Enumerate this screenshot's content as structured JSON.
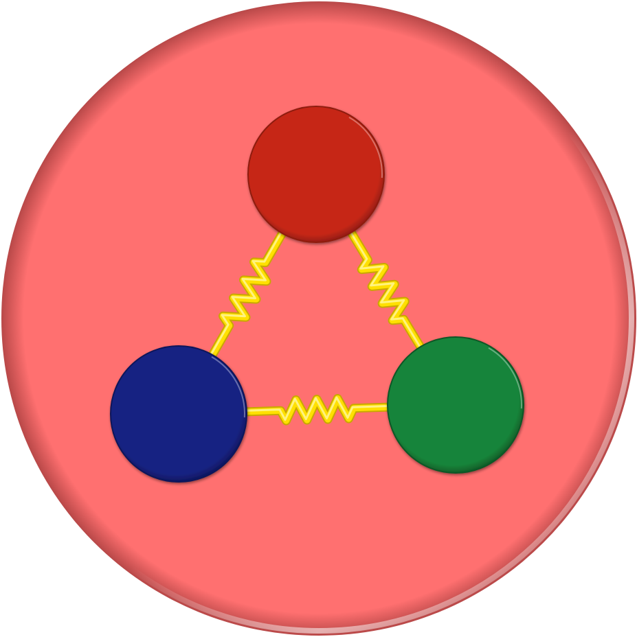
{
  "diagram": {
    "type": "particle-triangle",
    "disc": {
      "color": "#FF7070",
      "shade": "#B84848"
    },
    "particles": [
      {
        "id": "top",
        "color": "#C62819",
        "edge": "#8E1A10"
      },
      {
        "id": "left",
        "color": "#182382",
        "edge": "#0D145A"
      },
      {
        "id": "right",
        "color": "#19843A",
        "edge": "#0E5725"
      }
    ],
    "springs": [
      {
        "from": "top",
        "to": "left"
      },
      {
        "from": "top",
        "to": "right"
      },
      {
        "from": "left",
        "to": "right"
      }
    ],
    "spring_color": "#FFE000",
    "spring_highlight": "#FFF8A0"
  }
}
